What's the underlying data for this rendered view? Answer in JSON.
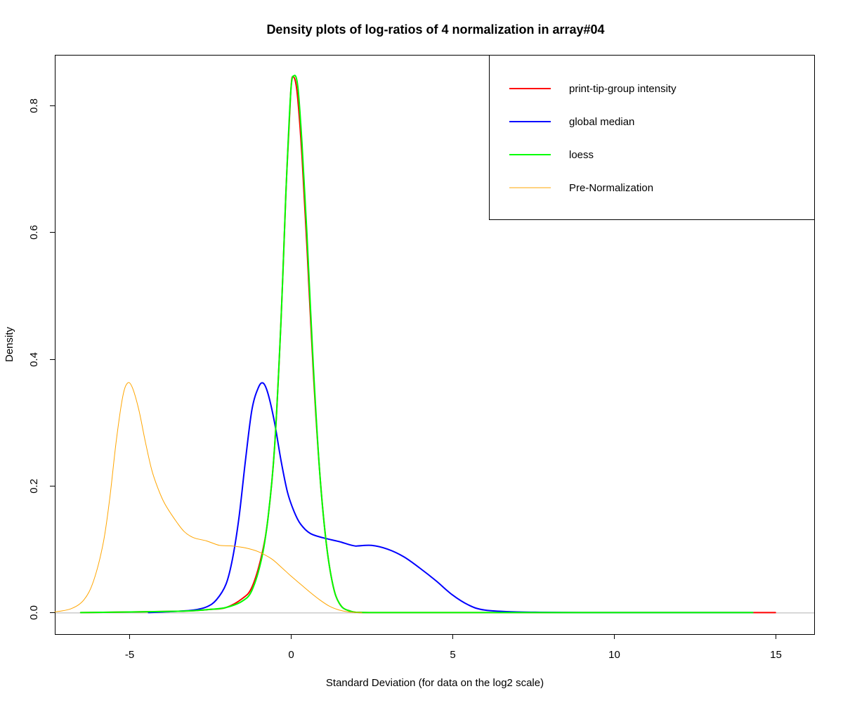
{
  "chart_data": {
    "type": "line",
    "title": "Density plots of log-ratios of 4 normalization in array#04",
    "xlabel": "Standard Deviation (for data on the log2 scale)",
    "ylabel": "Density",
    "xlim": [
      -7.3,
      16.2
    ],
    "ylim": [
      -0.034,
      0.88
    ],
    "x_ticks": [
      -5,
      0,
      5,
      10,
      15
    ],
    "x_tick_labels": [
      "-5",
      "0",
      "5",
      "10",
      "15"
    ],
    "y_ticks": [
      0.0,
      0.2,
      0.4,
      0.6,
      0.8
    ],
    "y_tick_labels": [
      "0.0",
      "0.2",
      "0.4",
      "0.6",
      "0.8"
    ],
    "grid": false,
    "legend_position": "top-right",
    "baseline_y": 0,
    "series": [
      {
        "name": "print-tip-group intensity",
        "color": "#ff0000",
        "width": 2,
        "points": [
          [
            -6.5,
            0
          ],
          [
            -3.5,
            0.002
          ],
          [
            -2.5,
            0.005
          ],
          [
            -2.0,
            0.008
          ],
          [
            -1.5,
            0.022
          ],
          [
            -1.2,
            0.04
          ],
          [
            -0.9,
            0.09
          ],
          [
            -0.7,
            0.15
          ],
          [
            -0.5,
            0.26
          ],
          [
            -0.3,
            0.46
          ],
          [
            -0.15,
            0.66
          ],
          [
            0.0,
            0.82
          ],
          [
            0.08,
            0.845
          ],
          [
            0.2,
            0.82
          ],
          [
            0.35,
            0.72
          ],
          [
            0.5,
            0.58
          ],
          [
            0.7,
            0.38
          ],
          [
            0.9,
            0.22
          ],
          [
            1.1,
            0.11
          ],
          [
            1.3,
            0.045
          ],
          [
            1.5,
            0.015
          ],
          [
            1.8,
            0.003
          ],
          [
            2.5,
            0
          ],
          [
            6.0,
            0
          ],
          [
            10.0,
            0
          ],
          [
            15.0,
            0
          ]
        ]
      },
      {
        "name": "global median",
        "color": "#0000ff",
        "width": 2,
        "points": [
          [
            -4.4,
            0
          ],
          [
            -3.5,
            0.002
          ],
          [
            -3.0,
            0.004
          ],
          [
            -2.6,
            0.009
          ],
          [
            -2.3,
            0.02
          ],
          [
            -2.0,
            0.045
          ],
          [
            -1.8,
            0.085
          ],
          [
            -1.6,
            0.15
          ],
          [
            -1.4,
            0.24
          ],
          [
            -1.2,
            0.32
          ],
          [
            -1.0,
            0.355
          ],
          [
            -0.85,
            0.362
          ],
          [
            -0.7,
            0.345
          ],
          [
            -0.5,
            0.3
          ],
          [
            -0.3,
            0.24
          ],
          [
            -0.1,
            0.19
          ],
          [
            0.1,
            0.16
          ],
          [
            0.3,
            0.14
          ],
          [
            0.6,
            0.125
          ],
          [
            1.0,
            0.118
          ],
          [
            1.5,
            0.112
          ],
          [
            2.0,
            0.105
          ],
          [
            2.5,
            0.106
          ],
          [
            3.0,
            0.1
          ],
          [
            3.5,
            0.088
          ],
          [
            4.0,
            0.07
          ],
          [
            4.5,
            0.05
          ],
          [
            5.0,
            0.028
          ],
          [
            5.5,
            0.012
          ],
          [
            6.0,
            0.004
          ],
          [
            7.0,
            0.001
          ],
          [
            9.0,
            0
          ],
          [
            14.3,
            0
          ]
        ]
      },
      {
        "name": "loess",
        "color": "#00ff00",
        "width": 2,
        "points": [
          [
            -6.5,
            0
          ],
          [
            -3.5,
            0.002
          ],
          [
            -2.5,
            0.005
          ],
          [
            -2.0,
            0.008
          ],
          [
            -1.5,
            0.018
          ],
          [
            -1.2,
            0.035
          ],
          [
            -0.9,
            0.085
          ],
          [
            -0.7,
            0.15
          ],
          [
            -0.5,
            0.26
          ],
          [
            -0.3,
            0.46
          ],
          [
            -0.15,
            0.66
          ],
          [
            0.0,
            0.82
          ],
          [
            0.1,
            0.847
          ],
          [
            0.22,
            0.83
          ],
          [
            0.35,
            0.74
          ],
          [
            0.5,
            0.6
          ],
          [
            0.7,
            0.39
          ],
          [
            0.9,
            0.22
          ],
          [
            1.1,
            0.11
          ],
          [
            1.3,
            0.045
          ],
          [
            1.5,
            0.015
          ],
          [
            1.8,
            0.003
          ],
          [
            2.5,
            0
          ],
          [
            6.0,
            0
          ],
          [
            10.0,
            0
          ],
          [
            14.3,
            0
          ]
        ]
      },
      {
        "name": "Pre-Normalization",
        "color": "#ffa500",
        "width": 1,
        "points": [
          [
            -7.3,
            0.001
          ],
          [
            -6.8,
            0.006
          ],
          [
            -6.4,
            0.02
          ],
          [
            -6.1,
            0.05
          ],
          [
            -5.8,
            0.11
          ],
          [
            -5.6,
            0.18
          ],
          [
            -5.4,
            0.27
          ],
          [
            -5.2,
            0.34
          ],
          [
            -5.05,
            0.362
          ],
          [
            -4.9,
            0.355
          ],
          [
            -4.7,
            0.32
          ],
          [
            -4.5,
            0.27
          ],
          [
            -4.3,
            0.225
          ],
          [
            -4.1,
            0.195
          ],
          [
            -3.9,
            0.172
          ],
          [
            -3.6,
            0.148
          ],
          [
            -3.3,
            0.128
          ],
          [
            -3.0,
            0.118
          ],
          [
            -2.6,
            0.113
          ],
          [
            -2.2,
            0.106
          ],
          [
            -1.8,
            0.105
          ],
          [
            -1.4,
            0.102
          ],
          [
            -1.0,
            0.096
          ],
          [
            -0.6,
            0.085
          ],
          [
            -0.3,
            0.072
          ],
          [
            0.0,
            0.058
          ],
          [
            0.3,
            0.045
          ],
          [
            0.6,
            0.032
          ],
          [
            0.9,
            0.02
          ],
          [
            1.2,
            0.01
          ],
          [
            1.5,
            0.004
          ],
          [
            1.8,
            0.001
          ],
          [
            2.2,
            0
          ]
        ]
      }
    ]
  }
}
